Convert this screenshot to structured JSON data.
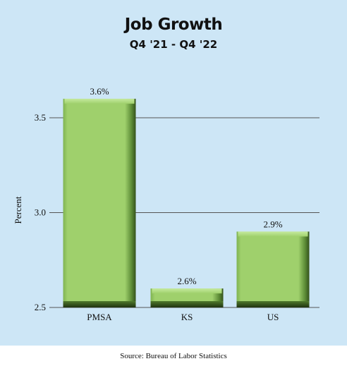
{
  "chart_data": {
    "type": "bar",
    "title": "Job Growth",
    "subtitle": "Q4 '21 - Q4 '22",
    "ylabel": "Percent",
    "xlabel": "",
    "categories": [
      "PMSA",
      "KS",
      "US"
    ],
    "values": [
      3.6,
      2.6,
      2.9
    ],
    "data_labels": [
      "3.6%",
      "2.6%",
      "2.9%"
    ],
    "ylim": [
      2.5,
      3.5
    ],
    "yticks": [
      2.5,
      3.0,
      3.5
    ],
    "ytick_labels": [
      "2.5",
      "3.0",
      "3.5"
    ],
    "grid": true,
    "legend": "none",
    "bar_color": "#9ccc6a",
    "background_color": "#cde6f6",
    "source": "Source: Bureau of Labor Statistics"
  }
}
